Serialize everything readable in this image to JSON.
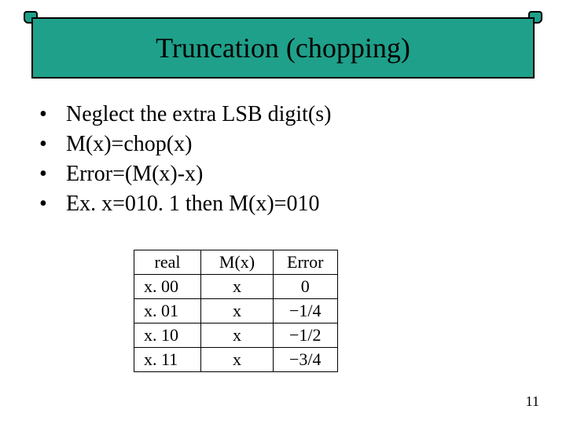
{
  "title": "Truncation (chopping)",
  "title_bg": "#1fa08a",
  "title_border": "#000000",
  "title_fontsize": 36,
  "bullets": [
    "Neglect the  extra LSB digit(s)",
    "M(x)=chop(x)",
    "Error=(M(x)-x)",
    "Ex. x=010. 1 then M(x)=010"
  ],
  "bullet_fontsize": 28,
  "table": {
    "columns": [
      "real",
      "M(x)",
      "Error"
    ],
    "rows": [
      [
        "x. 00",
        "x",
        "0"
      ],
      [
        "x. 01",
        "x",
        "−1/4"
      ],
      [
        "x. 10",
        "x",
        "−1/2"
      ],
      [
        "x. 11",
        "x",
        "−3/4"
      ]
    ],
    "cell_fontsize": 22,
    "border_color": "#000000"
  },
  "page_number": "11",
  "background_color": "#ffffff"
}
